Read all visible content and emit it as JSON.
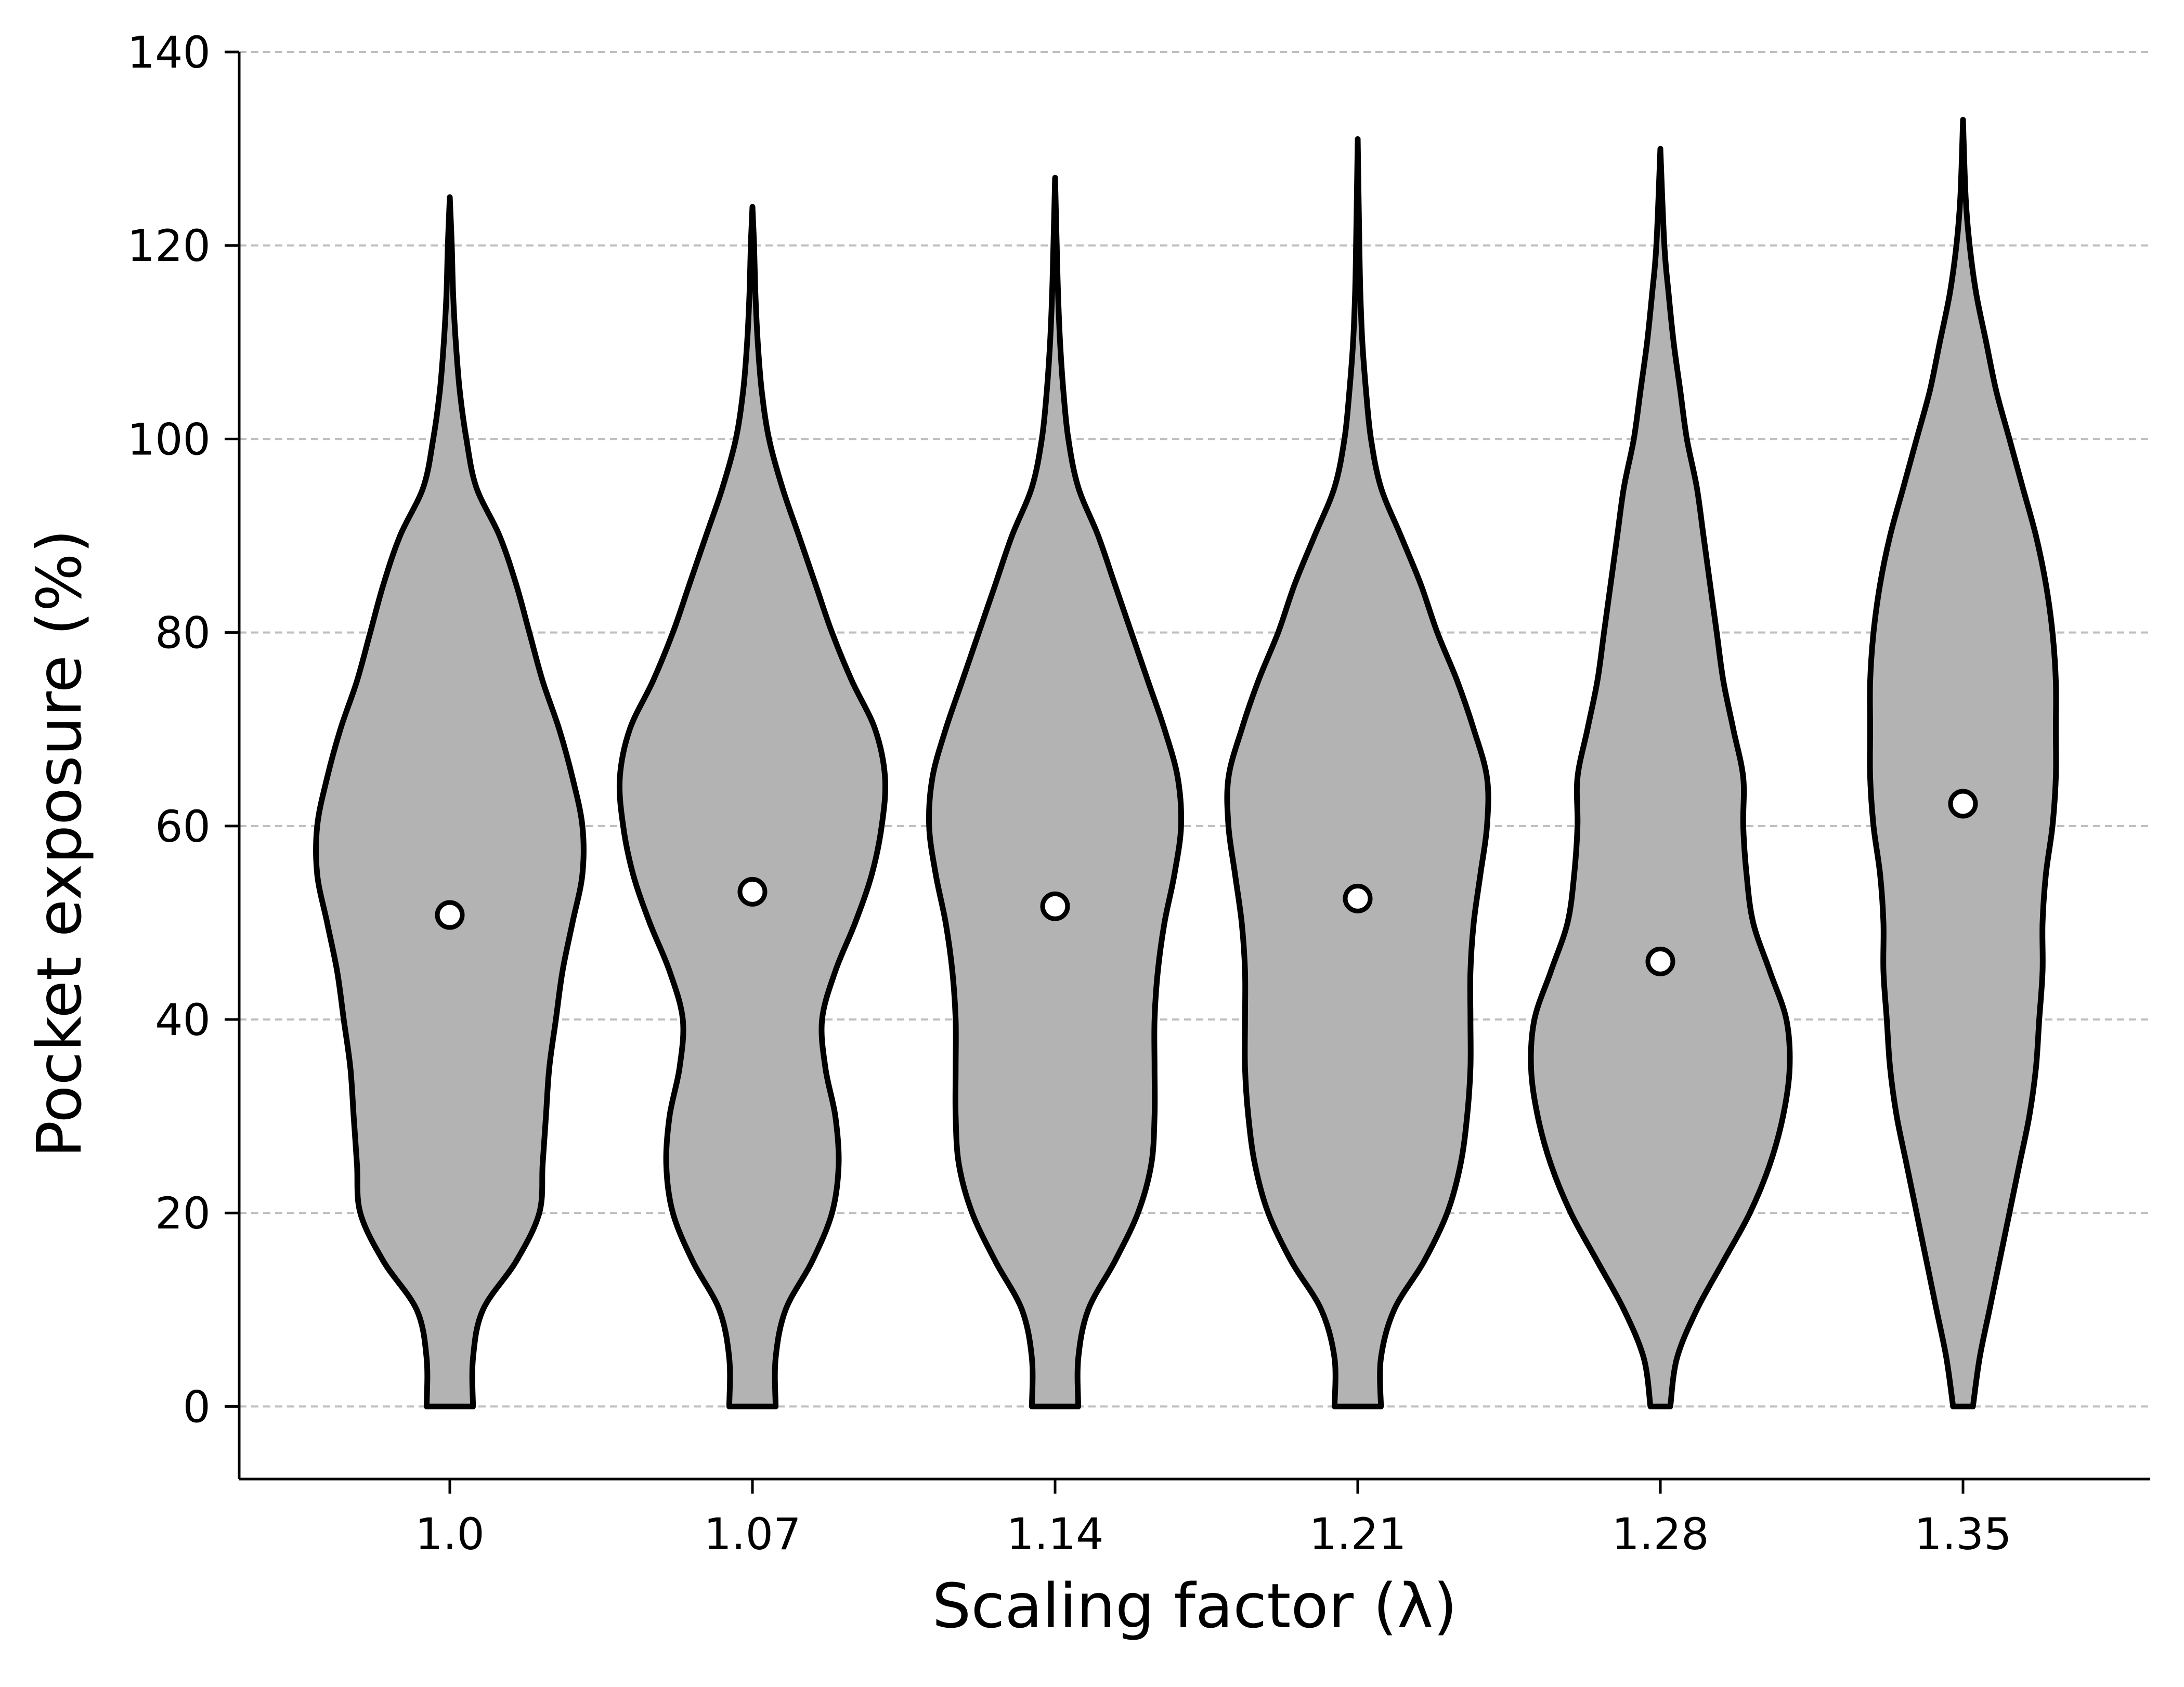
{
  "chart_data": {
    "type": "violin",
    "title": "",
    "xlabel": "Scaling factor (λ)",
    "ylabel": "Pocket exposure (%)",
    "ylim": [
      -7.5,
      140
    ],
    "yticks": [
      0,
      20,
      40,
      60,
      80,
      100,
      120,
      140
    ],
    "grid": "y, dashed",
    "categories": [
      "1.0",
      "1.07",
      "1.14",
      "1.21",
      "1.28",
      "1.35"
    ],
    "violin_fill": "#b3b3b3",
    "edge_color": "#000000",
    "grid_color": "#bfbfbf",
    "series": [
      {
        "category": "1.0",
        "mean": 50.8,
        "min": 0,
        "max": 125,
        "profile": [
          [
            0,
            0.07
          ],
          [
            5,
            0.07
          ],
          [
            10,
            0.1
          ],
          [
            15,
            0.2
          ],
          [
            20,
            0.27
          ],
          [
            25,
            0.28
          ],
          [
            30,
            0.29
          ],
          [
            35,
            0.3
          ],
          [
            40,
            0.32
          ],
          [
            45,
            0.34
          ],
          [
            50,
            0.37
          ],
          [
            55,
            0.4
          ],
          [
            60,
            0.4
          ],
          [
            65,
            0.37
          ],
          [
            70,
            0.33
          ],
          [
            75,
            0.28
          ],
          [
            80,
            0.24
          ],
          [
            85,
            0.2
          ],
          [
            90,
            0.15
          ],
          [
            95,
            0.08
          ],
          [
            100,
            0.05
          ],
          [
            105,
            0.03
          ],
          [
            110,
            0.018
          ],
          [
            115,
            0.01
          ],
          [
            120,
            0.006
          ],
          [
            125,
            0.0
          ]
        ]
      },
      {
        "category": "1.07",
        "mean": 53.2,
        "min": 0,
        "max": 124,
        "profile": [
          [
            0,
            0.07
          ],
          [
            5,
            0.07
          ],
          [
            10,
            0.1
          ],
          [
            15,
            0.18
          ],
          [
            20,
            0.24
          ],
          [
            25,
            0.26
          ],
          [
            30,
            0.25
          ],
          [
            35,
            0.22
          ],
          [
            40,
            0.21
          ],
          [
            45,
            0.25
          ],
          [
            50,
            0.31
          ],
          [
            55,
            0.36
          ],
          [
            60,
            0.39
          ],
          [
            65,
            0.4
          ],
          [
            70,
            0.37
          ],
          [
            75,
            0.3
          ],
          [
            80,
            0.24
          ],
          [
            85,
            0.19
          ],
          [
            90,
            0.14
          ],
          [
            95,
            0.09
          ],
          [
            100,
            0.05
          ],
          [
            105,
            0.028
          ],
          [
            110,
            0.016
          ],
          [
            115,
            0.009
          ],
          [
            120,
            0.005
          ],
          [
            124,
            0.0
          ]
        ]
      },
      {
        "category": "1.14",
        "mean": 51.7,
        "min": 0,
        "max": 127,
        "profile": [
          [
            0,
            0.07
          ],
          [
            5,
            0.07
          ],
          [
            10,
            0.1
          ],
          [
            15,
            0.18
          ],
          [
            20,
            0.25
          ],
          [
            25,
            0.29
          ],
          [
            30,
            0.3
          ],
          [
            35,
            0.3
          ],
          [
            40,
            0.3
          ],
          [
            45,
            0.31
          ],
          [
            50,
            0.33
          ],
          [
            55,
            0.36
          ],
          [
            60,
            0.38
          ],
          [
            65,
            0.37
          ],
          [
            70,
            0.33
          ],
          [
            75,
            0.28
          ],
          [
            80,
            0.23
          ],
          [
            85,
            0.18
          ],
          [
            90,
            0.13
          ],
          [
            95,
            0.07
          ],
          [
            100,
            0.04
          ],
          [
            105,
            0.025
          ],
          [
            110,
            0.015
          ],
          [
            115,
            0.009
          ],
          [
            120,
            0.005
          ],
          [
            127,
            0.0
          ]
        ]
      },
      {
        "category": "1.21",
        "mean": 52.5,
        "min": 0,
        "max": 131,
        "profile": [
          [
            0,
            0.07
          ],
          [
            5,
            0.07
          ],
          [
            10,
            0.11
          ],
          [
            15,
            0.2
          ],
          [
            20,
            0.27
          ],
          [
            25,
            0.31
          ],
          [
            30,
            0.33
          ],
          [
            35,
            0.34
          ],
          [
            40,
            0.34
          ],
          [
            45,
            0.34
          ],
          [
            50,
            0.35
          ],
          [
            55,
            0.37
          ],
          [
            60,
            0.39
          ],
          [
            65,
            0.39
          ],
          [
            70,
            0.35
          ],
          [
            75,
            0.3
          ],
          [
            80,
            0.24
          ],
          [
            85,
            0.19
          ],
          [
            90,
            0.13
          ],
          [
            95,
            0.07
          ],
          [
            100,
            0.04
          ],
          [
            105,
            0.025
          ],
          [
            110,
            0.014
          ],
          [
            115,
            0.008
          ],
          [
            120,
            0.005
          ],
          [
            131,
            0.0
          ]
        ]
      },
      {
        "category": "1.28",
        "mean": 46.0,
        "min": 0,
        "max": 130,
        "profile": [
          [
            0,
            0.03
          ],
          [
            5,
            0.05
          ],
          [
            10,
            0.11
          ],
          [
            15,
            0.19
          ],
          [
            20,
            0.27
          ],
          [
            25,
            0.33
          ],
          [
            30,
            0.37
          ],
          [
            35,
            0.39
          ],
          [
            40,
            0.38
          ],
          [
            45,
            0.33
          ],
          [
            50,
            0.28
          ],
          [
            55,
            0.26
          ],
          [
            60,
            0.25
          ],
          [
            65,
            0.25
          ],
          [
            70,
            0.22
          ],
          [
            75,
            0.19
          ],
          [
            80,
            0.17
          ],
          [
            85,
            0.15
          ],
          [
            90,
            0.13
          ],
          [
            95,
            0.11
          ],
          [
            100,
            0.08
          ],
          [
            105,
            0.06
          ],
          [
            110,
            0.04
          ],
          [
            115,
            0.025
          ],
          [
            120,
            0.012
          ],
          [
            130,
            0.0
          ]
        ]
      },
      {
        "category": "1.35",
        "mean": 62.3,
        "min": 0,
        "max": 133,
        "profile": [
          [
            0,
            0.03
          ],
          [
            5,
            0.05
          ],
          [
            10,
            0.08
          ],
          [
            15,
            0.11
          ],
          [
            20,
            0.14
          ],
          [
            25,
            0.17
          ],
          [
            30,
            0.2
          ],
          [
            35,
            0.22
          ],
          [
            40,
            0.23
          ],
          [
            45,
            0.24
          ],
          [
            50,
            0.24
          ],
          [
            55,
            0.25
          ],
          [
            60,
            0.27
          ],
          [
            65,
            0.28
          ],
          [
            70,
            0.28
          ],
          [
            75,
            0.28
          ],
          [
            80,
            0.27
          ],
          [
            85,
            0.25
          ],
          [
            90,
            0.22
          ],
          [
            95,
            0.18
          ],
          [
            100,
            0.14
          ],
          [
            105,
            0.1
          ],
          [
            110,
            0.07
          ],
          [
            115,
            0.04
          ],
          [
            120,
            0.02
          ],
          [
            125,
            0.008
          ],
          [
            133,
            0.0
          ]
        ]
      }
    ]
  }
}
